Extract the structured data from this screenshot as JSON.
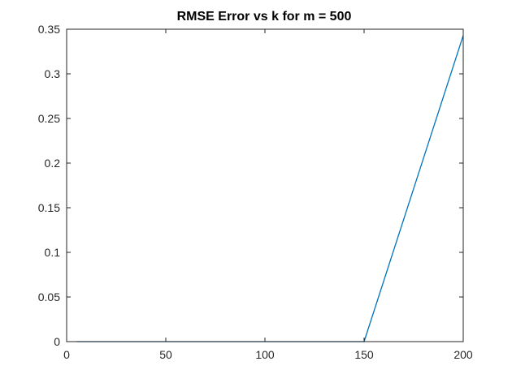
{
  "chart_data": {
    "type": "line",
    "title": "RMSE Error vs k for m = 500",
    "xlabel": "",
    "ylabel": "",
    "xlim": [
      0,
      200
    ],
    "ylim": [
      0,
      0.35
    ],
    "xticks": [
      0,
      50,
      100,
      150,
      200
    ],
    "yticks": [
      0,
      0.05,
      0.1,
      0.15,
      0.2,
      0.25,
      0.3,
      0.35
    ],
    "xtick_labels": [
      "0",
      "50",
      "100",
      "150",
      "200"
    ],
    "ytick_labels": [
      "0",
      "0.05",
      "0.1",
      "0.15",
      "0.2",
      "0.25",
      "0.3",
      "0.35"
    ],
    "grid": false,
    "series": [
      {
        "color": "#0072BD",
        "x": [
          5,
          50,
          100,
          150,
          200
        ],
        "y": [
          0,
          0,
          0,
          0,
          0.343
        ]
      }
    ]
  }
}
